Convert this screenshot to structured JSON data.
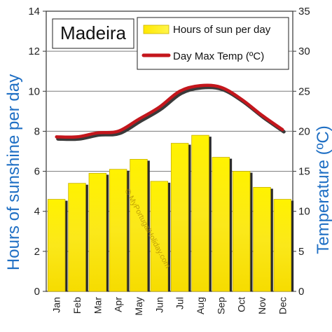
{
  "chart_data": {
    "type": "bar",
    "title": "Madeira",
    "categories": [
      "Jan",
      "Feb",
      "Mar",
      "Apr",
      "May",
      "Jun",
      "Jul",
      "Aug",
      "Sep",
      "Oct",
      "Nov",
      "Dec"
    ],
    "series": [
      {
        "name": "Hours of sun per day",
        "type": "bar",
        "axis": "left",
        "color": "#f5e300",
        "values": [
          4.6,
          5.4,
          5.9,
          6.1,
          6.6,
          5.5,
          7.4,
          7.8,
          6.7,
          6.0,
          5.2,
          4.6
        ]
      },
      {
        "name": "Day Max Temp (ºC)",
        "type": "line",
        "axis": "right",
        "color": "#c4161c",
        "values": [
          19.3,
          19.3,
          19.8,
          20.0,
          21.5,
          23.0,
          25.0,
          25.7,
          25.5,
          24.0,
          22.0,
          20.2
        ]
      }
    ],
    "ylabel": "Hours of sunshine per day",
    "y2label": "Temperature (ºC)",
    "ylim": [
      0,
      14
    ],
    "y2lim": [
      0,
      35
    ],
    "yticks": [
      "0",
      "2",
      "4",
      "6",
      "8",
      "10",
      "12",
      "14"
    ],
    "y2ticks": [
      "0",
      "5",
      "10",
      "15",
      "20",
      "25",
      "30",
      "35"
    ],
    "grid": true,
    "legend": "top-right"
  },
  "watermark": "© MyPortugalHoliday.com"
}
